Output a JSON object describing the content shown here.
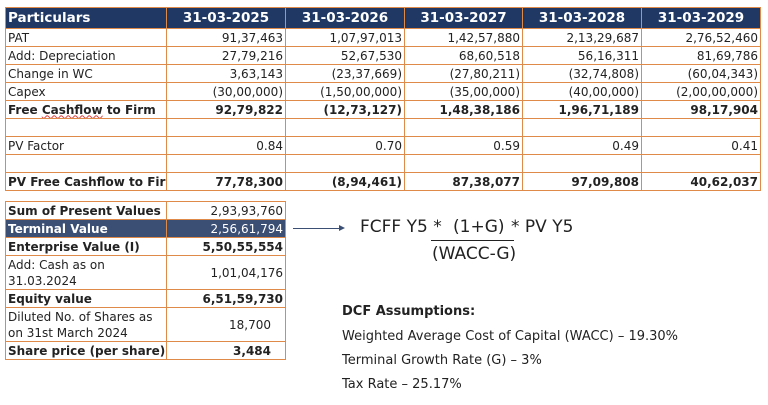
{
  "main_table": {
    "headers": [
      "Particulars",
      "31-03-2025",
      "31-03-2026",
      "31-03-2027",
      "31-03-2028",
      "31-03-2029"
    ],
    "rows": [
      {
        "label": "PAT",
        "values": [
          "91,37,463",
          "1,07,97,013",
          "1,42,57,880",
          "2,13,29,687",
          "2,76,52,460"
        ]
      },
      {
        "label": "Add: Depreciation",
        "values": [
          "27,79,216",
          "52,67,530",
          "68,60,518",
          "56,16,311",
          "81,69,786"
        ]
      },
      {
        "label": "Change in WC",
        "values": [
          "3,63,143",
          "(23,37,669)",
          "(27,80,211)",
          "(32,74,808)",
          "(60,04,343)"
        ]
      },
      {
        "label": "Capex",
        "values": [
          "(30,00,000)",
          "(1,50,00,000)",
          "(35,00,000)",
          "(40,00,000)",
          "(2,00,00,000)"
        ]
      },
      {
        "label_a": "Free ",
        "label_b": "Cashflow",
        "label_c": " to Firm",
        "values": [
          "92,79,822",
          "(12,73,127)",
          "1,48,38,186",
          "1,96,71,189",
          "98,17,904"
        ]
      },
      {
        "label": "PV Factor",
        "values": [
          "0.84",
          "0.70",
          "0.59",
          "0.49",
          "0.41"
        ]
      },
      {
        "label": "PV Free Cashflow to Firm",
        "values": [
          "77,78,300",
          "(8,94,461)",
          "87,38,077",
          "97,09,808",
          "40,62,037"
        ]
      }
    ]
  },
  "summary_table": [
    {
      "label": "Sum of Present Values",
      "value": "2,93,93,760"
    },
    {
      "label": "Terminal Value",
      "value": "2,56,61,794"
    },
    {
      "label": "Enterprise Value (I)",
      "value": "5,50,55,554"
    },
    {
      "label": "Add: Cash as on 31.03.2024",
      "value": "1,01,04,176"
    },
    {
      "label": "Equity value",
      "value": "6,51,59,730"
    },
    {
      "label": "Diluted No. of Shares as on 31st March 2024",
      "value": "18,700"
    },
    {
      "label": "Share price (per share)",
      "value": "3,484"
    }
  ],
  "formula": {
    "left": "FCFF Y5 *",
    "numerator": "(1+G)",
    "right": "*  PV Y5",
    "denominator": "(WACC-G)"
  },
  "assumptions": {
    "title": "DCF Assumptions:",
    "items": [
      "Weighted Average Cost of Capital (WACC) – 19.30%",
      "Terminal Growth Rate (G) – 3%",
      "Tax Rate – 25.17%"
    ]
  },
  "colors": {
    "header_bg": "#1f3864",
    "border": "#e08a4a",
    "highlight_bg": "#3b4f74"
  }
}
